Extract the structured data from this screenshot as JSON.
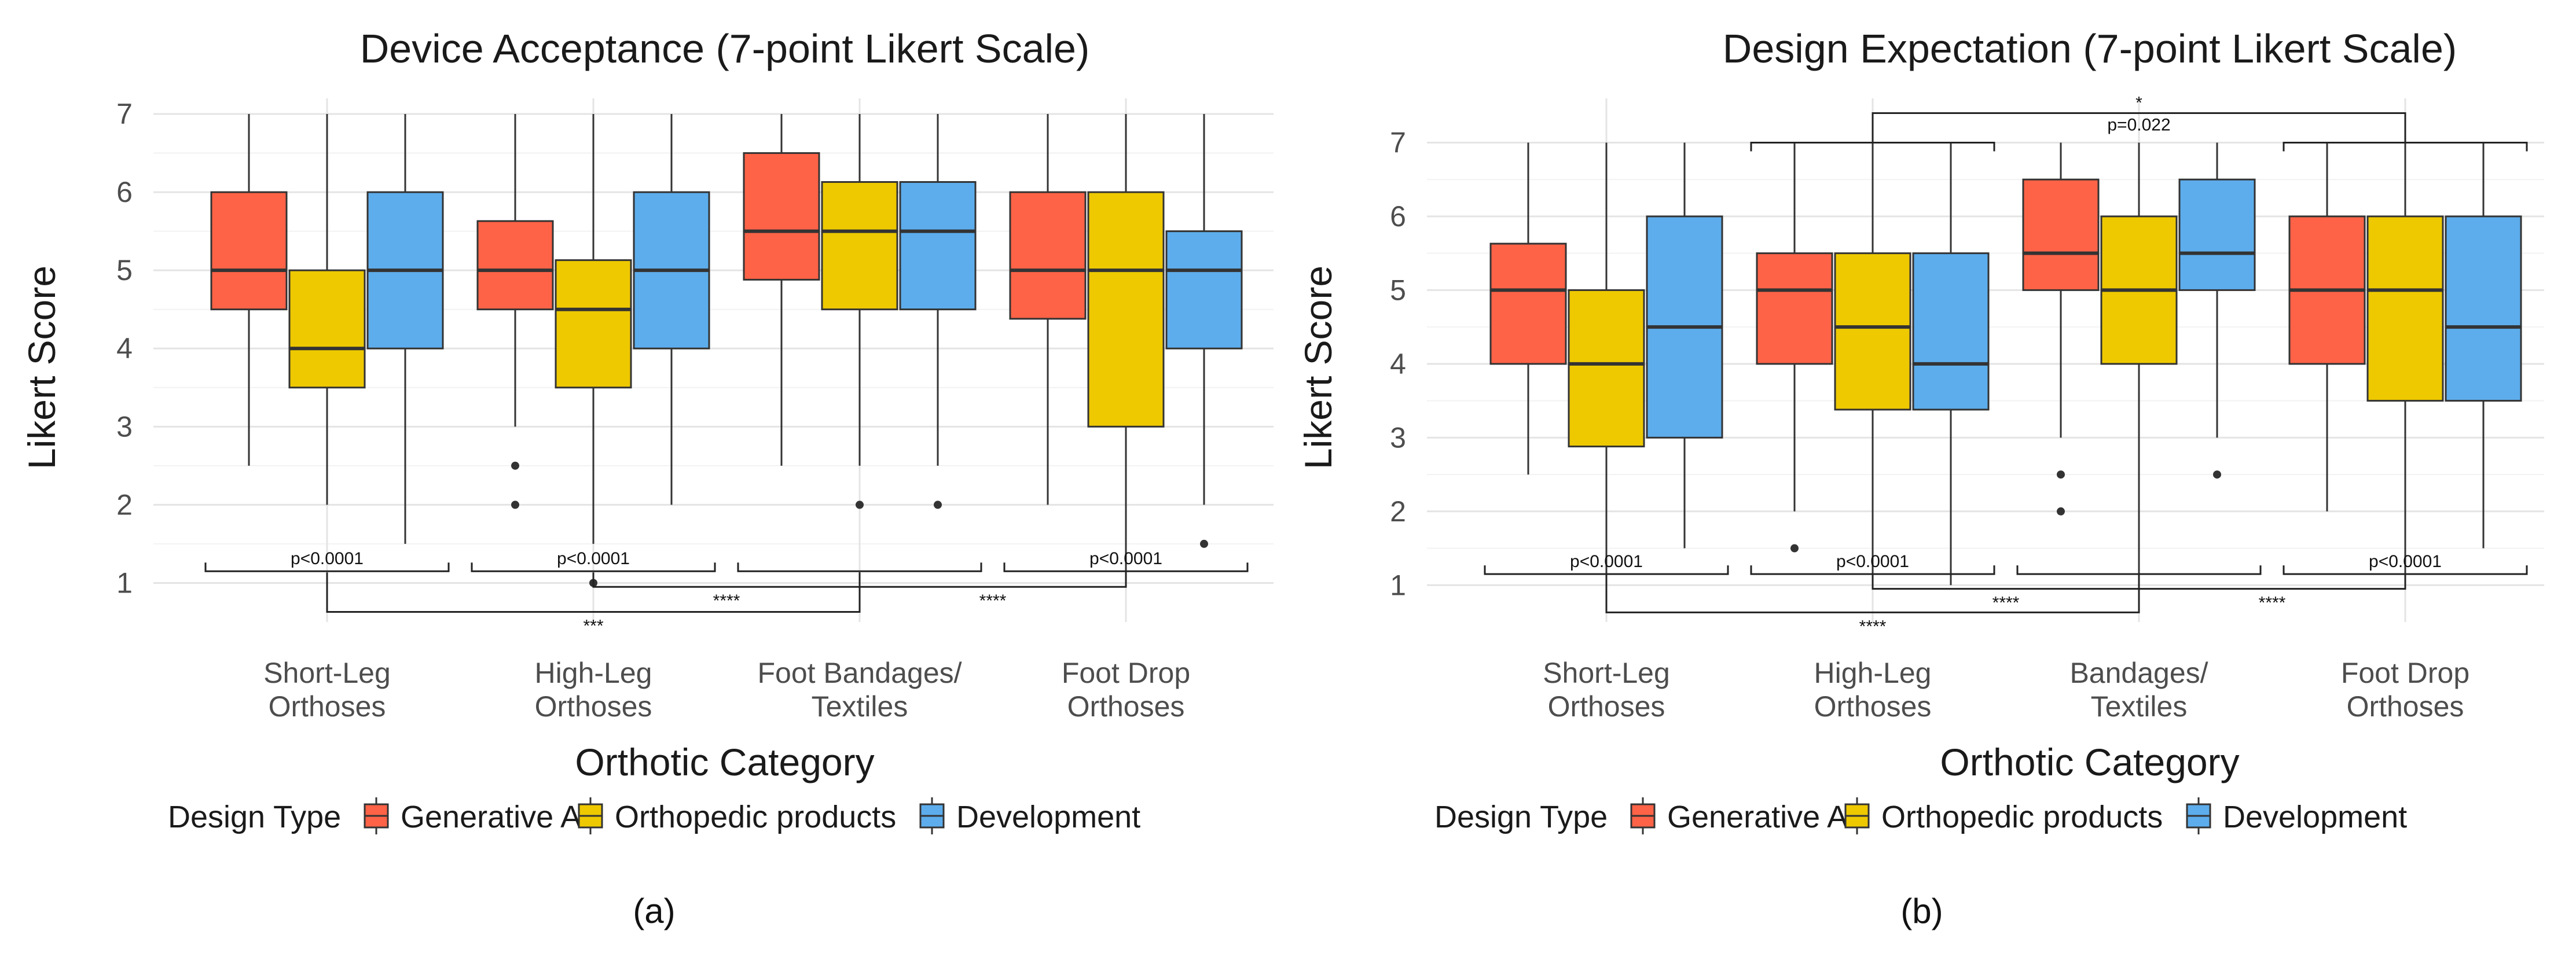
{
  "figure": {
    "panel_labels": [
      "(a)",
      "(b)"
    ],
    "legend": {
      "title": "Design Type",
      "entries": [
        {
          "name": "Generative AI",
          "color": "#FF6347"
        },
        {
          "name": "Orthopedic products",
          "color": "#EEC900"
        },
        {
          "name": "Development",
          "color": "#5DADEC"
        }
      ]
    }
  },
  "chart_data": [
    {
      "type": "boxplot",
      "title": "Device Acceptance (7-point Likert Scale)",
      "xlabel": "Orthotic Category",
      "ylabel": "Likert Score",
      "ylim": [
        0.5,
        7.2
      ],
      "yticks": [
        1,
        2,
        3,
        4,
        5,
        6,
        7
      ],
      "categories": [
        [
          "Short-Leg",
          "Orthoses"
        ],
        [
          "High-Leg",
          "Orthoses"
        ],
        [
          "Foot Bandages/",
          "Textiles"
        ],
        [
          "Foot Drop",
          "Orthoses"
        ]
      ],
      "series": [
        {
          "name": "Generative AI",
          "boxes": [
            {
              "whisker_low": 2.5,
              "q1": 4.5,
              "median": 5.0,
              "q3": 6.0,
              "whisker_high": 7.0,
              "outliers": []
            },
            {
              "whisker_low": 3.0,
              "q1": 4.5,
              "median": 5.0,
              "q3": 5.63,
              "whisker_high": 7.0,
              "outliers": [
                2.0,
                2.5
              ]
            },
            {
              "whisker_low": 2.5,
              "q1": 4.88,
              "median": 5.5,
              "q3": 6.5,
              "whisker_high": 7.0,
              "outliers": []
            },
            {
              "whisker_low": 2.0,
              "q1": 4.38,
              "median": 5.0,
              "q3": 6.0,
              "whisker_high": 7.0,
              "outliers": []
            }
          ]
        },
        {
          "name": "Orthopedic products",
          "boxes": [
            {
              "whisker_low": 2.0,
              "q1": 3.5,
              "median": 4.0,
              "q3": 5.0,
              "whisker_high": 7.0,
              "outliers": []
            },
            {
              "whisker_low": 1.5,
              "q1": 3.5,
              "median": 4.5,
              "q3": 5.13,
              "whisker_high": 7.0,
              "outliers": [
                1.0
              ]
            },
            {
              "whisker_low": 2.5,
              "q1": 4.5,
              "median": 5.5,
              "q3": 6.13,
              "whisker_high": 7.0,
              "outliers": [
                2.0
              ]
            },
            {
              "whisker_low": 1.0,
              "q1": 3.0,
              "median": 5.0,
              "q3": 6.0,
              "whisker_high": 7.0,
              "outliers": []
            }
          ]
        },
        {
          "name": "Development",
          "boxes": [
            {
              "whisker_low": 1.5,
              "q1": 4.0,
              "median": 5.0,
              "q3": 6.0,
              "whisker_high": 7.0,
              "outliers": []
            },
            {
              "whisker_low": 2.0,
              "q1": 4.0,
              "median": 5.0,
              "q3": 6.0,
              "whisker_high": 7.0,
              "outliers": []
            },
            {
              "whisker_low": 2.5,
              "q1": 4.5,
              "median": 5.5,
              "q3": 6.13,
              "whisker_high": 7.0,
              "outliers": [
                2.0
              ]
            },
            {
              "whisker_low": 2.0,
              "q1": 4.0,
              "median": 5.0,
              "q3": 5.5,
              "whisker_high": 7.0,
              "outliers": [
                1.5
              ]
            }
          ]
        }
      ],
      "annotations": [
        {
          "kind": "group",
          "y": 1.15,
          "category": 0,
          "label": "p<0.0001"
        },
        {
          "kind": "group",
          "y": 1.15,
          "category": 1,
          "label": "p<0.0001"
        },
        {
          "kind": "group",
          "y": 1.15,
          "category": 2,
          "label": ""
        },
        {
          "kind": "group",
          "y": 1.15,
          "category": 3,
          "label": "p<0.0001"
        },
        {
          "kind": "span",
          "y": 0.95,
          "from": 1,
          "to": 2,
          "label": "****"
        },
        {
          "kind": "span",
          "y": 0.95,
          "from": 2,
          "to": 3,
          "label": "****"
        },
        {
          "kind": "span",
          "y": 0.63,
          "from": 0,
          "to": 2,
          "label": "***"
        }
      ]
    },
    {
      "type": "boxplot",
      "title": "Design Expectation (7-point Likert Scale)",
      "xlabel": "Orthotic Category",
      "ylabel": "Likert Score",
      "ylim": [
        0.5,
        7.6
      ],
      "yticks": [
        1,
        2,
        3,
        4,
        5,
        6,
        7
      ],
      "categories": [
        [
          "Short-Leg",
          "Orthoses"
        ],
        [
          "High-Leg",
          "Orthoses"
        ],
        [
          "Bandages/",
          "Textiles"
        ],
        [
          "Foot Drop",
          "Orthoses"
        ]
      ],
      "series": [
        {
          "name": "Generative AI",
          "boxes": [
            {
              "whisker_low": 2.5,
              "q1": 4.0,
              "median": 5.0,
              "q3": 5.63,
              "whisker_high": 7.0,
              "outliers": []
            },
            {
              "whisker_low": 2.0,
              "q1": 4.0,
              "median": 5.0,
              "q3": 5.5,
              "whisker_high": 7.0,
              "outliers": [
                1.5
              ]
            },
            {
              "whisker_low": 3.0,
              "q1": 5.0,
              "median": 5.5,
              "q3": 6.5,
              "whisker_high": 7.0,
              "outliers": [
                2.0,
                2.5
              ]
            },
            {
              "whisker_low": 2.0,
              "q1": 4.0,
              "median": 5.0,
              "q3": 6.0,
              "whisker_high": 7.0,
              "outliers": []
            }
          ]
        },
        {
          "name": "Orthopedic products",
          "boxes": [
            {
              "whisker_low": 1.0,
              "q1": 2.88,
              "median": 4.0,
              "q3": 5.0,
              "whisker_high": 7.0,
              "outliers": []
            },
            {
              "whisker_low": 1.0,
              "q1": 3.38,
              "median": 4.5,
              "q3": 5.5,
              "whisker_high": 7.0,
              "outliers": []
            },
            {
              "whisker_low": 1.0,
              "q1": 4.0,
              "median": 5.0,
              "q3": 6.0,
              "whisker_high": 7.0,
              "outliers": []
            },
            {
              "whisker_low": 1.0,
              "q1": 3.5,
              "median": 5.0,
              "q3": 6.0,
              "whisker_high": 7.0,
              "outliers": []
            }
          ]
        },
        {
          "name": "Development",
          "boxes": [
            {
              "whisker_low": 1.5,
              "q1": 3.0,
              "median": 4.5,
              "q3": 6.0,
              "whisker_high": 7.0,
              "outliers": []
            },
            {
              "whisker_low": 1.0,
              "q1": 3.38,
              "median": 4.0,
              "q3": 5.5,
              "whisker_high": 7.0,
              "outliers": []
            },
            {
              "whisker_low": 3.0,
              "q1": 5.0,
              "median": 5.5,
              "q3": 6.5,
              "whisker_high": 7.0,
              "outliers": [
                2.5
              ]
            },
            {
              "whisker_low": 1.5,
              "q1": 3.5,
              "median": 4.5,
              "q3": 6.0,
              "whisker_high": 7.0,
              "outliers": []
            }
          ]
        }
      ],
      "annotations": [
        {
          "kind": "group",
          "y": 1.15,
          "category": 0,
          "label": "p<0.0001"
        },
        {
          "kind": "group",
          "y": 1.15,
          "category": 1,
          "label": "p<0.0001"
        },
        {
          "kind": "group",
          "y": 1.15,
          "category": 2,
          "label": ""
        },
        {
          "kind": "group",
          "y": 1.15,
          "category": 3,
          "label": "p<0.0001"
        },
        {
          "kind": "span",
          "y": 0.95,
          "from": 1,
          "to": 2,
          "label": "****"
        },
        {
          "kind": "span",
          "y": 0.95,
          "from": 2,
          "to": 3,
          "label": "****"
        },
        {
          "kind": "span",
          "y": 0.63,
          "from": 0,
          "to": 2,
          "label": "****"
        },
        {
          "kind": "top_group",
          "y": 7.0,
          "category": 1,
          "label": ""
        },
        {
          "kind": "top_group",
          "y": 7.0,
          "category": 3,
          "label": ""
        },
        {
          "kind": "top_span",
          "y": 7.4,
          "from": 1,
          "to": 3,
          "label": "*",
          "sublabel": "p=0.022"
        }
      ]
    }
  ]
}
